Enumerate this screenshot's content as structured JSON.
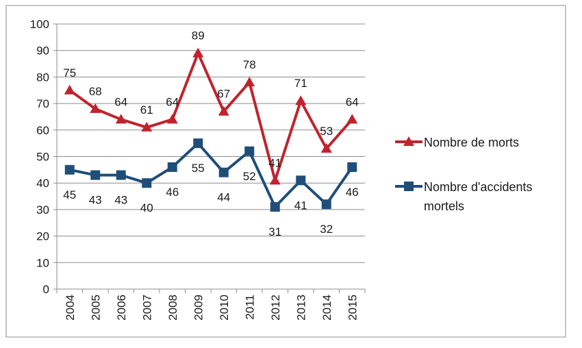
{
  "chart_data": {
    "type": "line",
    "title": "",
    "xlabel": "",
    "ylabel": "",
    "categories": [
      "2004",
      "2005",
      "2006",
      "2007",
      "2008",
      "2009",
      "2010",
      "2011",
      "2012",
      "2013",
      "2014",
      "2015"
    ],
    "ylim": [
      0,
      100
    ],
    "yticks": [
      0,
      10,
      20,
      30,
      40,
      50,
      60,
      70,
      80,
      90,
      100
    ],
    "grid": true,
    "legend_position": "right",
    "series": [
      {
        "name": "Nombre de morts",
        "values": [
          75,
          68,
          64,
          61,
          64,
          89,
          67,
          78,
          41,
          71,
          53,
          64
        ],
        "color": "#C0232E",
        "marker": "triangle",
        "label_position": "above"
      },
      {
        "name": "Nombre d'accidents mortels",
        "name_lines": [
          "Nombre d'accidents",
          "mortels"
        ],
        "values": [
          45,
          43,
          43,
          40,
          46,
          55,
          44,
          52,
          31,
          41,
          32,
          46
        ],
        "color": "#1F4E79",
        "marker": "square",
        "label_position": "below"
      }
    ]
  }
}
